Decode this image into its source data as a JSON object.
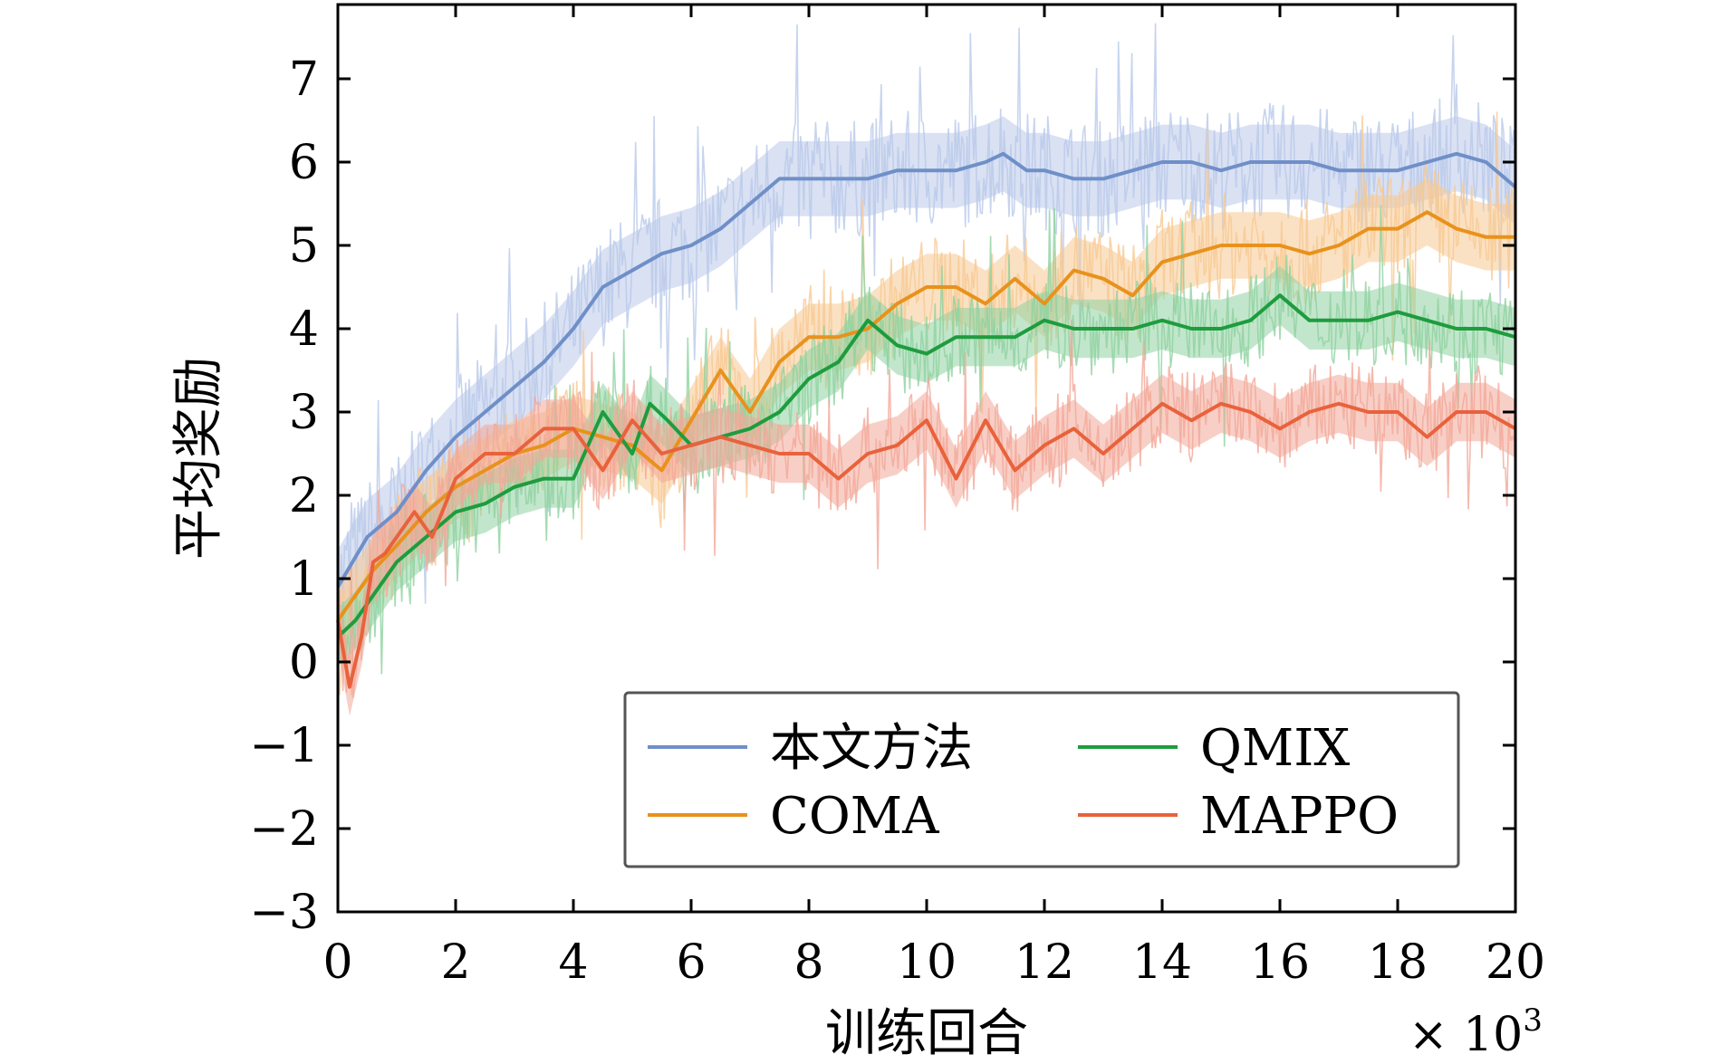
{
  "chart_data": {
    "type": "line",
    "xlabel": "训练回合",
    "ylabel": "平均奖励",
    "x_multiplier": "× 10",
    "x_multiplier_exp": "3",
    "xlim": [
      0,
      20
    ],
    "ylim": [
      -3,
      7.5
    ],
    "xticks": [
      "0",
      "2",
      "4",
      "6",
      "8",
      "10",
      "12",
      "14",
      "16",
      "18",
      "20"
    ],
    "yticks": [
      "−3",
      "−2",
      "−1",
      "0",
      "1",
      "2",
      "3",
      "4",
      "5",
      "6",
      "7"
    ],
    "legend_position": "lower-right",
    "series": [
      {
        "name": "本文方法",
        "color": "#6f8fc8",
        "band_color": "#b9c9ea",
        "x": [
          0,
          0.5,
          1,
          1.5,
          2,
          2.5,
          3,
          3.5,
          4,
          4.5,
          5,
          5.5,
          6,
          6.5,
          7,
          7.5,
          8,
          8.5,
          9,
          9.5,
          10,
          10.5,
          11,
          11.3,
          11.7,
          12,
          12.5,
          13,
          13.5,
          14,
          14.5,
          15,
          15.5,
          16,
          16.5,
          17,
          17.5,
          18,
          18.5,
          19,
          19.5,
          20
        ],
        "y": [
          0.9,
          1.5,
          1.8,
          2.3,
          2.7,
          3.0,
          3.3,
          3.6,
          4.0,
          4.5,
          4.7,
          4.9,
          5.0,
          5.2,
          5.5,
          5.8,
          5.8,
          5.8,
          5.8,
          5.9,
          5.9,
          5.9,
          6.0,
          6.1,
          5.9,
          5.9,
          5.8,
          5.8,
          5.9,
          6.0,
          6.0,
          5.9,
          6.0,
          6.0,
          6.0,
          5.9,
          5.9,
          5.9,
          6.0,
          6.1,
          6.0,
          5.7
        ],
        "band_halfwidth": 0.45
      },
      {
        "name": "COMA",
        "color": "#e8921c",
        "band_color": "#f7c992",
        "x": [
          0,
          0.3,
          0.6,
          1,
          1.5,
          2,
          2.5,
          3,
          3.5,
          4,
          4.5,
          5,
          5.5,
          6,
          6.5,
          7,
          7.5,
          8,
          8.5,
          9,
          9.5,
          10,
          10.5,
          11,
          11.5,
          12,
          12.5,
          13,
          13.5,
          14,
          14.5,
          15,
          15.5,
          16,
          16.5,
          17,
          17.5,
          18,
          18.5,
          19,
          19.5,
          20
        ],
        "y": [
          0.5,
          0.8,
          1.1,
          1.4,
          1.8,
          2.1,
          2.3,
          2.5,
          2.6,
          2.8,
          2.7,
          2.6,
          2.3,
          2.9,
          3.5,
          3.0,
          3.6,
          3.9,
          3.9,
          4.0,
          4.3,
          4.5,
          4.5,
          4.3,
          4.6,
          4.3,
          4.7,
          4.6,
          4.4,
          4.8,
          4.9,
          5.0,
          5.0,
          5.0,
          4.9,
          5.0,
          5.2,
          5.2,
          5.4,
          5.2,
          5.1,
          5.1
        ],
        "band_halfwidth": 0.4
      },
      {
        "name": "QMIX",
        "color": "#1e9c3e",
        "band_color": "#8fd2a0",
        "x": [
          0,
          0.3,
          0.6,
          1,
          1.5,
          2,
          2.5,
          3,
          3.5,
          4,
          4.5,
          5,
          5.3,
          5.6,
          6,
          6.5,
          7,
          7.5,
          8,
          8.5,
          9,
          9.5,
          10,
          10.5,
          11,
          11.5,
          12,
          12.5,
          13,
          13.5,
          14,
          14.5,
          15,
          15.5,
          16,
          16.5,
          17,
          17.5,
          18,
          18.5,
          19,
          19.5,
          20
        ],
        "y": [
          0.3,
          0.5,
          0.8,
          1.2,
          1.5,
          1.8,
          1.9,
          2.1,
          2.2,
          2.2,
          3.0,
          2.5,
          3.1,
          2.9,
          2.6,
          2.7,
          2.8,
          3.0,
          3.4,
          3.6,
          4.1,
          3.8,
          3.7,
          3.9,
          3.9,
          3.9,
          4.1,
          4.0,
          4.0,
          4.0,
          4.1,
          4.0,
          4.0,
          4.1,
          4.4,
          4.1,
          4.1,
          4.1,
          4.2,
          4.1,
          4.0,
          4.0,
          3.9
        ],
        "band_halfwidth": 0.35
      },
      {
        "name": "MAPPO",
        "color": "#e8623c",
        "band_color": "#f3a898",
        "x": [
          0,
          0.2,
          0.4,
          0.6,
          0.8,
          1,
          1.3,
          1.6,
          2,
          2.5,
          3,
          3.5,
          4,
          4.5,
          5,
          5.5,
          6,
          6.5,
          7,
          7.5,
          8,
          8.5,
          9,
          9.5,
          10,
          10.5,
          11,
          11.5,
          12,
          12.5,
          13,
          13.5,
          14,
          14.5,
          15,
          15.5,
          16,
          16.5,
          17,
          17.5,
          18,
          18.5,
          19,
          19.5,
          20
        ],
        "y": [
          0.5,
          -0.3,
          0.3,
          1.2,
          1.3,
          1.5,
          1.8,
          1.5,
          2.2,
          2.5,
          2.5,
          2.8,
          2.8,
          2.3,
          2.9,
          2.5,
          2.6,
          2.7,
          2.6,
          2.5,
          2.5,
          2.2,
          2.5,
          2.6,
          2.9,
          2.2,
          2.9,
          2.3,
          2.6,
          2.8,
          2.5,
          2.8,
          3.1,
          2.9,
          3.1,
          3.0,
          2.8,
          3.0,
          3.1,
          3.0,
          3.0,
          2.7,
          3.0,
          3.0,
          2.8
        ],
        "band_halfwidth": 0.35
      }
    ]
  }
}
